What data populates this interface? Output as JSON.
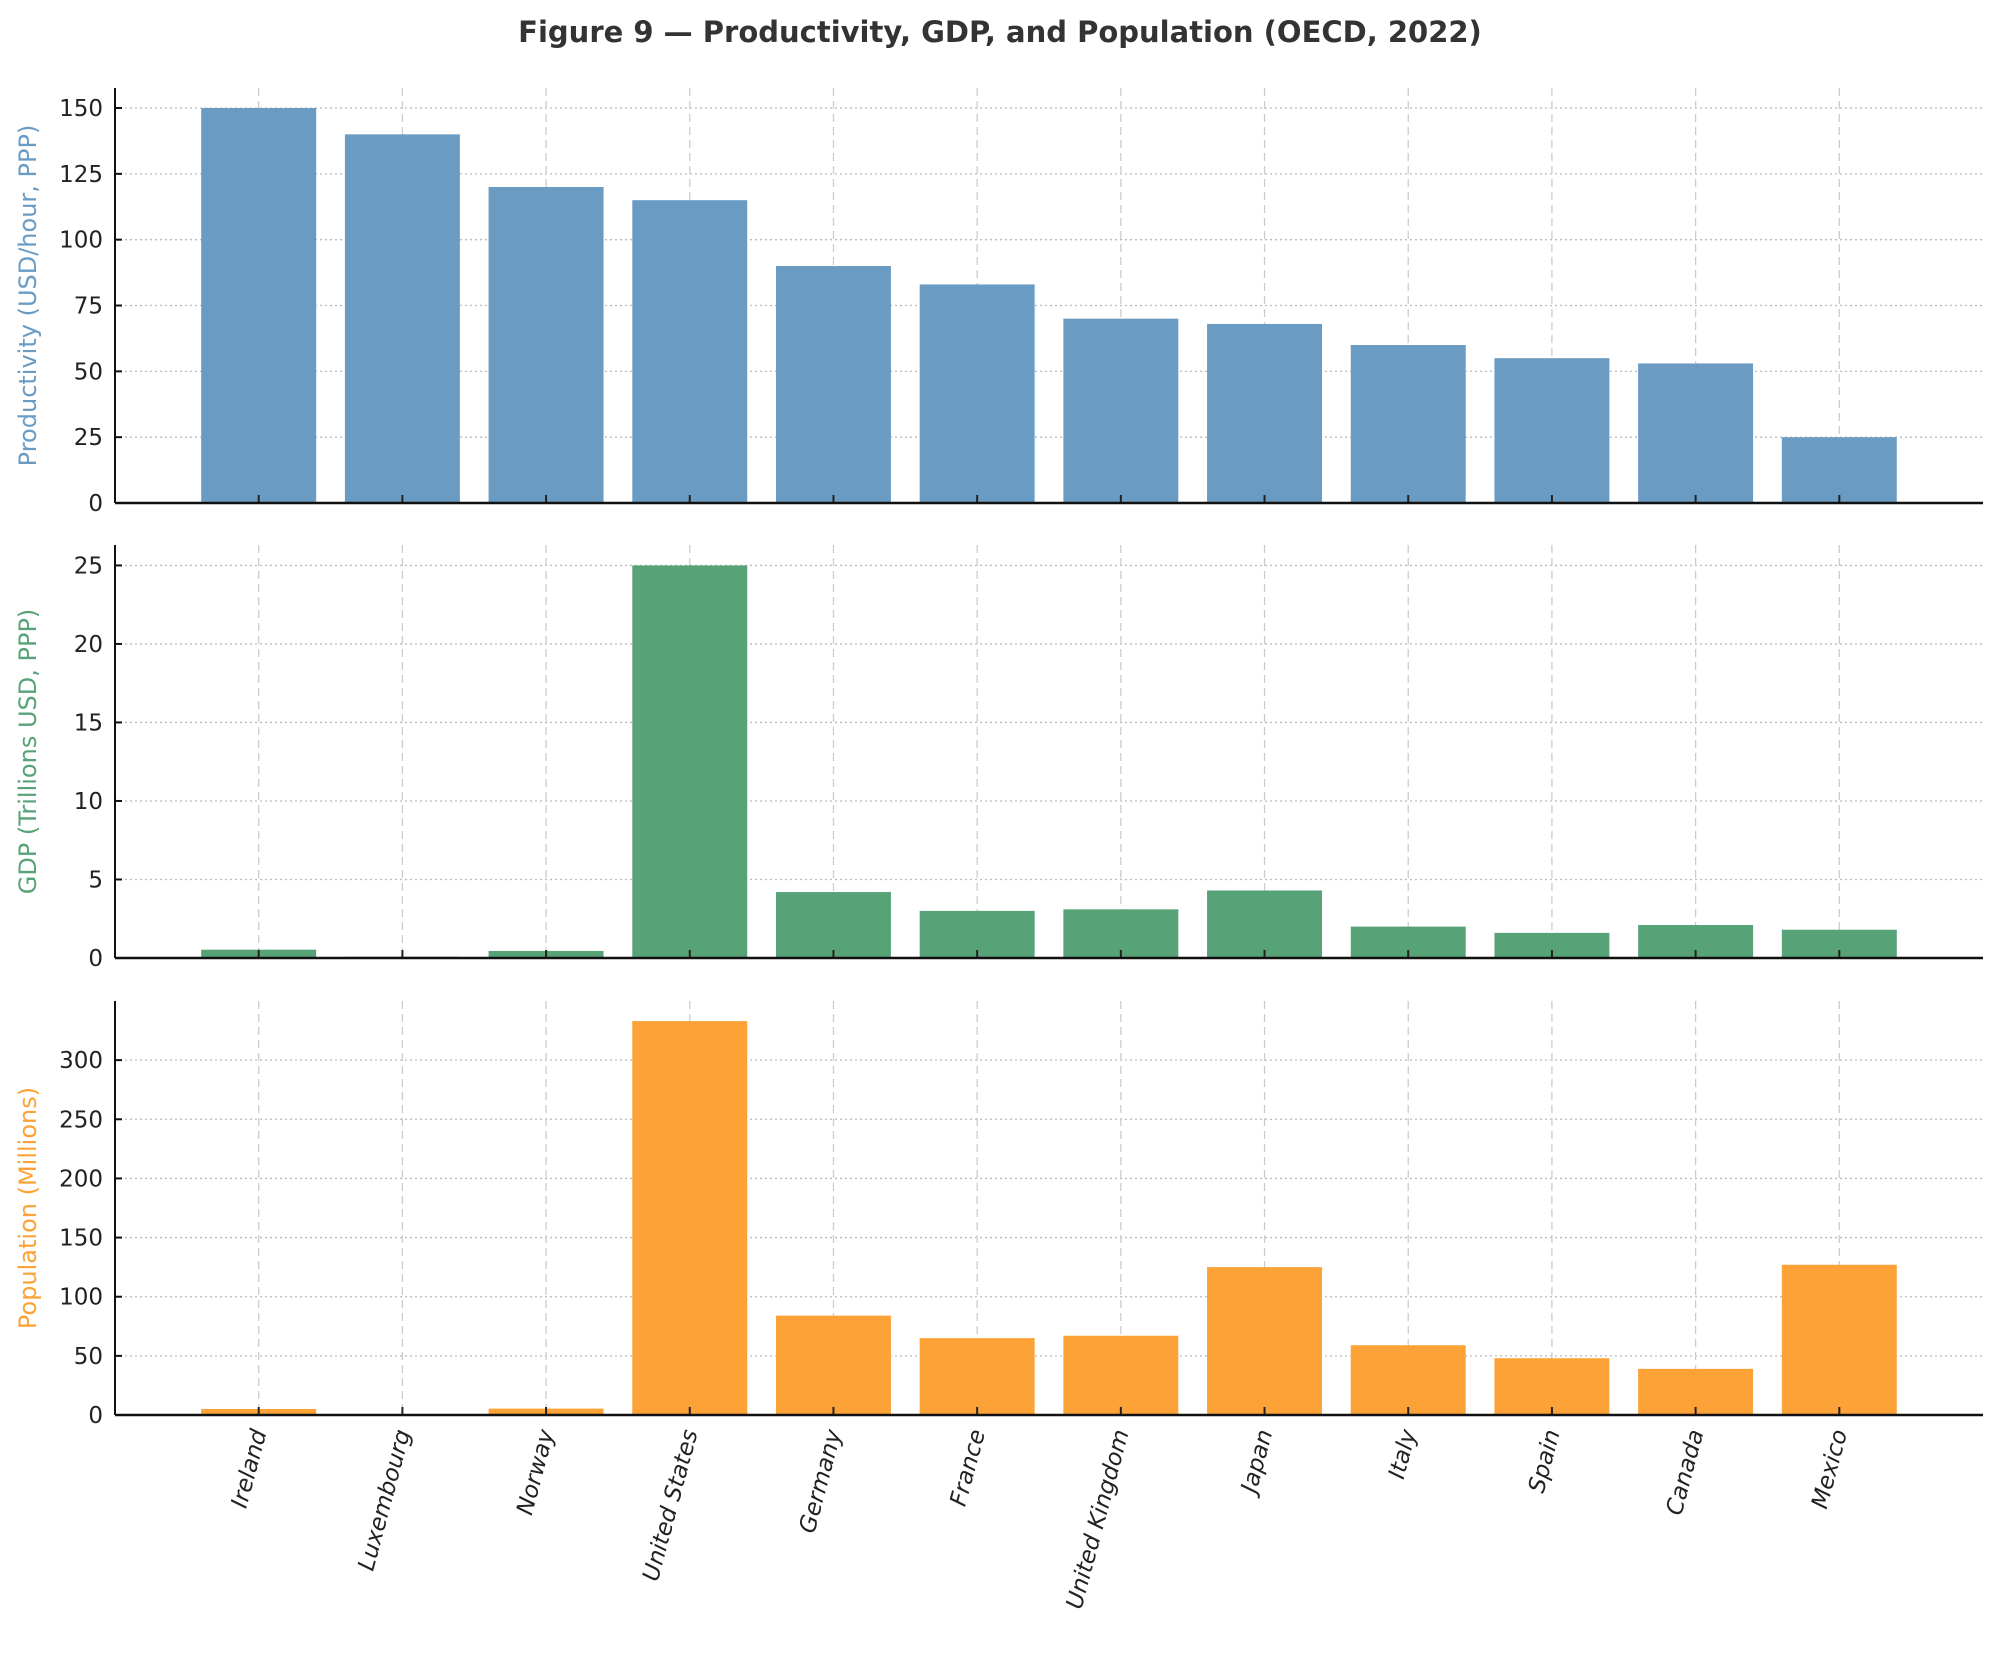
{
  "chart_data": {
    "type": "bar",
    "title": "Figure 9 — Productivity, GDP, and Population (OECD, 2022)",
    "categories": [
      "Ireland",
      "Luxembourg",
      "Norway",
      "United States",
      "Germany",
      "France",
      "United Kingdom",
      "Japan",
      "Italy",
      "Spain",
      "Canada",
      "Mexico"
    ],
    "grid": true,
    "panels": [
      {
        "ylabel": "Productivity (USD/hour, PPP)",
        "color": "#6a9bc3",
        "ylim": [
          0,
          157.6
        ],
        "yticks": [
          0,
          25,
          50,
          75,
          100,
          125,
          150
        ],
        "values": [
          150,
          140,
          120,
          115,
          90,
          83,
          70,
          68,
          60,
          55,
          53,
          25
        ]
      },
      {
        "ylabel": "GDP (Trillions USD, PPP)",
        "color": "#57a277",
        "ylim": [
          0,
          26.3
        ],
        "yticks": [
          0,
          5,
          10,
          15,
          20,
          25
        ],
        "values": [
          0.53,
          0.08,
          0.45,
          25.0,
          4.2,
          3.0,
          3.1,
          4.3,
          2.0,
          1.6,
          2.1,
          1.8
        ]
      },
      {
        "ylabel": "Population (Millions)",
        "color": "#fca236",
        "ylim": [
          0,
          350
        ],
        "yticks": [
          0,
          50,
          100,
          150,
          200,
          250,
          300
        ],
        "values": [
          5.1,
          0.6,
          5.4,
          333,
          84,
          65,
          67,
          125,
          59,
          48,
          39,
          127
        ]
      }
    ]
  }
}
